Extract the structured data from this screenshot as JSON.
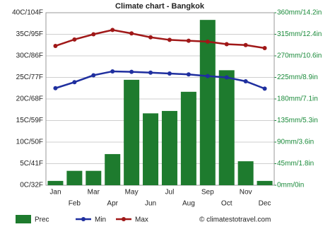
{
  "chart_data": {
    "type": "combo",
    "title": "Climate chart - Bangkok",
    "categories": [
      "Jan",
      "Feb",
      "Mar",
      "Apr",
      "May",
      "Jun",
      "Jul",
      "Aug",
      "Sep",
      "Oct",
      "Nov",
      "Dec"
    ],
    "series": [
      {
        "name": "Prec",
        "type": "bar",
        "axis": "y2",
        "color": "#1e7b2e",
        "values": [
          9,
          30,
          30,
          65,
          220,
          150,
          155,
          195,
          345,
          240,
          50,
          9
        ]
      },
      {
        "name": "Min",
        "type": "line",
        "axis": "y",
        "color": "#1f2f9f",
        "values": [
          22.5,
          23.9,
          25.5,
          26.4,
          26.3,
          26.1,
          25.9,
          25.7,
          25.3,
          25.0,
          24.1,
          22.4
        ]
      },
      {
        "name": "Max",
        "type": "line",
        "axis": "y",
        "color": "#a01818",
        "values": [
          32.3,
          33.8,
          35.0,
          36.0,
          35.2,
          34.3,
          33.7,
          33.5,
          33.3,
          32.7,
          32.5,
          31.8
        ]
      }
    ],
    "ylim": [
      0,
      40
    ],
    "yticks": [
      {
        "value": 0,
        "label": "0C/32F"
      },
      {
        "value": 5,
        "label": "5C/41F"
      },
      {
        "value": 10,
        "label": "10C/50F"
      },
      {
        "value": 15,
        "label": "15C/59F"
      },
      {
        "value": 20,
        "label": "20C/68F"
      },
      {
        "value": 25,
        "label": "25C/77F"
      },
      {
        "value": 30,
        "label": "30C/86F"
      },
      {
        "value": 35,
        "label": "35C/95F"
      },
      {
        "value": 40,
        "label": "40C/104F"
      }
    ],
    "y2lim": [
      0,
      360
    ],
    "y2ticks": [
      {
        "value": 0,
        "label": "0mm/0in"
      },
      {
        "value": 45,
        "label": "45mm/1.8in"
      },
      {
        "value": 90,
        "label": "90mm/3.6in"
      },
      {
        "value": 135,
        "label": "135mm/5.3in"
      },
      {
        "value": 180,
        "label": "180mm/7.1in"
      },
      {
        "value": 225,
        "label": "225mm/8.9in"
      },
      {
        "value": 270,
        "label": "270mm/10.6in"
      },
      {
        "value": 315,
        "label": "315mm/12.4in"
      },
      {
        "value": 360,
        "label": "360mm/14.2in"
      }
    ],
    "grid": true,
    "watermark": "© climatestotravel.com"
  }
}
